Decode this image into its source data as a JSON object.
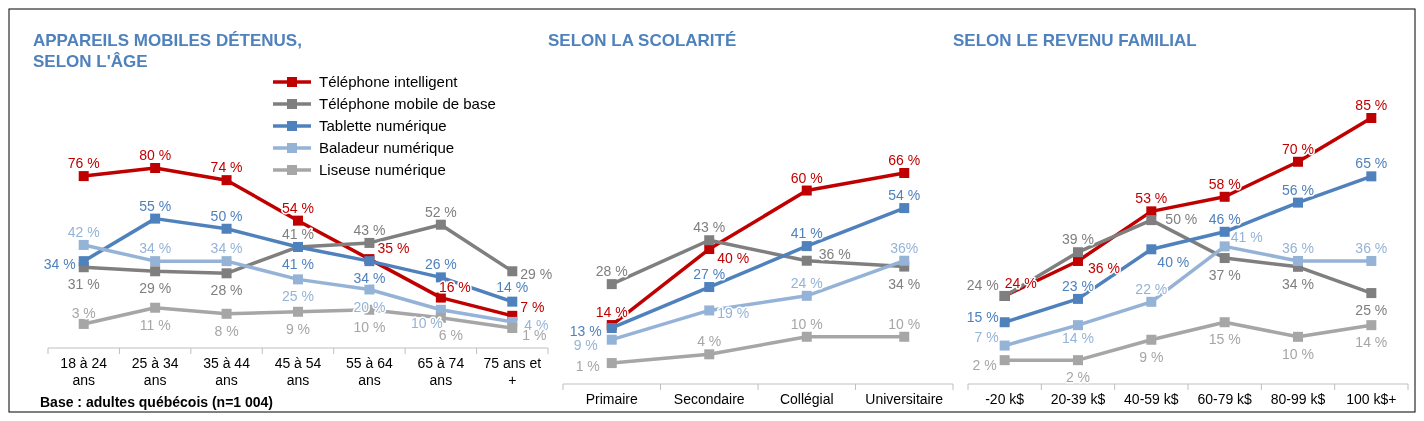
{
  "chart_data": [
    {
      "type": "line",
      "title": "APPAREILS MOBILES DÉTENUS,\nSELON L'ÂGE",
      "categories": [
        "18 à 24 ans",
        "25 à 34 ans",
        "35 à 44 ans",
        "45 à 54 ans",
        "55 à 64 ans",
        "65 à 74 ans",
        "75 ans et +"
      ],
      "marker": "square",
      "legend": "top right",
      "annotations": [
        "Base : adultes québécois (n=1 004)"
      ],
      "series": [
        {
          "name": "Téléphone intelligent",
          "color": "#c00000",
          "values": [
            76,
            80,
            74,
            54,
            35,
            16,
            7
          ],
          "value_labels": [
            "76 %",
            "80 %",
            "74 %",
            "54 %",
            "35 %",
            "16 %",
            "7 %"
          ]
        },
        {
          "name": "Téléphone mobile de base",
          "color": "#7f7f7f",
          "values": [
            31,
            29,
            28,
            41,
            43,
            52,
            29
          ],
          "value_labels": [
            "31 %",
            "29 %",
            "28 %",
            "41 %",
            "43 %",
            "52 %",
            "29 %"
          ]
        },
        {
          "name": "Tablette numérique",
          "color": "#4f81bd",
          "values": [
            34,
            55,
            50,
            41,
            34,
            26,
            14
          ],
          "value_labels": [
            "34 %",
            "55 %",
            "50 %",
            "41 %",
            "34 %",
            "26 %",
            "14 %"
          ]
        },
        {
          "name": "Baladeur numérique",
          "color": "#95b3d7",
          "values": [
            42,
            34,
            34,
            25,
            20,
            10,
            4
          ],
          "value_labels": [
            "42 %",
            "34 %",
            "34 %",
            "25 %",
            "20 %",
            "10 %",
            "4 %"
          ]
        },
        {
          "name": "Liseuse numérique",
          "color": "#a6a6a6",
          "values": [
            3,
            11,
            8,
            9,
            10,
            6,
            1
          ],
          "value_labels": [
            "3 %",
            "11 %",
            "8 %",
            "9 %",
            "10 %",
            "6 %",
            "1 %"
          ]
        }
      ]
    },
    {
      "type": "line",
      "title": "SELON LA SCOLARITÉ",
      "categories": [
        "Primaire",
        "Secondaire",
        "Collégial",
        "Universitaire"
      ],
      "marker": "square",
      "series": [
        {
          "color": "#c00000",
          "values": [
            14,
            40,
            60,
            66
          ],
          "value_labels": [
            "14 %",
            "40 %",
            "60 %",
            "66 %"
          ]
        },
        {
          "color": "#7f7f7f",
          "values": [
            28,
            43,
            36,
            34
          ],
          "value_labels": [
            "28 %",
            "43 %",
            "36 %",
            "34 %"
          ]
        },
        {
          "color": "#4f81bd",
          "values": [
            13,
            27,
            41,
            54
          ],
          "value_labels": [
            "13 %",
            "27 %",
            "41 %",
            "54 %"
          ]
        },
        {
          "color": "#95b3d7",
          "values": [
            9,
            19,
            24,
            36
          ],
          "value_labels": [
            "9 %",
            "19 %",
            "24 %",
            "36%"
          ]
        },
        {
          "color": "#a6a6a6",
          "values": [
            1,
            4,
            10,
            10
          ],
          "value_labels": [
            "1 %",
            "4 %",
            "10 %",
            "10 %"
          ]
        }
      ]
    },
    {
      "type": "line",
      "title": "SELON LE REVENU FAMILIAL",
      "categories": [
        "-20 k$",
        "20-39 k$",
        "40-59 k$",
        "60-79 k$",
        "80-99 k$",
        "100 k$+"
      ],
      "marker": "square",
      "series": [
        {
          "color": "#c00000",
          "values": [
            24,
            36,
            53,
            58,
            70,
            85
          ],
          "value_labels": [
            "24 %",
            "36 %",
            "53 %",
            "58 %",
            "70 %",
            "85 %"
          ]
        },
        {
          "color": "#7f7f7f",
          "values": [
            24,
            39,
            50,
            37,
            34,
            25
          ],
          "value_labels": [
            "24 %",
            "39 %",
            "50 %",
            "37 %",
            "34 %",
            "25 %"
          ]
        },
        {
          "color": "#4f81bd",
          "values": [
            15,
            23,
            40,
            46,
            56,
            65
          ],
          "value_labels": [
            "15 %",
            "23 %",
            "40 %",
            "46 %",
            "56 %",
            "65 %"
          ]
        },
        {
          "color": "#95b3d7",
          "values": [
            7,
            14,
            22,
            41,
            36,
            36
          ],
          "value_labels": [
            "7 %",
            "14 %",
            "22 %",
            "41 %",
            "36 %",
            "36 %"
          ]
        },
        {
          "color": "#a6a6a6",
          "values": [
            2,
            2,
            9,
            15,
            10,
            14
          ],
          "value_labels": [
            "2 %",
            "2 %",
            "9 %",
            "15 %",
            "10 %",
            "14 %"
          ]
        }
      ]
    }
  ]
}
